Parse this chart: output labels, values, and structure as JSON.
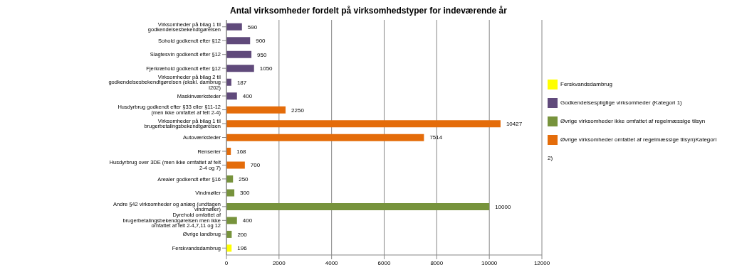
{
  "chart_data": {
    "type": "bar",
    "orientation": "horizontal",
    "stacked": true,
    "title": "Antal virksomheder fordelt på virksomhedstyper for indeværende  år",
    "categories": [
      "Virksomheder på bilag 1 til godkendelsesbekendtgørelsen",
      "Sohold godkendt efter §12",
      "Slagtesvin godkendt efter §12",
      "Fjerkræhold godkendt efter §12",
      "Virksomheder på bilag 2 til godkendelsesbekendtgørelsen (ekskl. dambrug I202)",
      "Maskinværksteder",
      "Husdyrbrug godkendt efter §33 eller §11-12 (men ikke omfattet af felt 2-4)",
      "Virksomheder på bilag 1 til brugerbetalingsbekendtgørelsen",
      "Autoværksteder",
      "Renserier",
      "Husdyrbrug over 3DE (men ikke omfattet af felt 2-4 og 7)",
      "Arealer godkendt efter §16",
      "Vindmøller",
      "Andre §42 virksomheder og anlæg (undtagen vindmøller)",
      "Dyrehold omfattet af brugerbetalingsbekendgørelsen men ikke omfattet af felt 2-4,7,11 og 12",
      "Øvrige landbrug",
      "Ferskvandsdambrug"
    ],
    "series": [
      {
        "name": "Godkendelsespligtige virksomheder (Kategori 1)",
        "color": "#604a7b",
        "values": [
          590,
          900,
          950,
          1050,
          187,
          400,
          null,
          null,
          null,
          null,
          null,
          null,
          null,
          null,
          null,
          null,
          null
        ]
      },
      {
        "name": "Øvrige virksomheder omfattet af regelmæssige tilsyn)Kategori 2)",
        "color": "#e46c0a",
        "values": [
          null,
          null,
          null,
          null,
          null,
          null,
          2250,
          10427,
          7514,
          168,
          700,
          null,
          null,
          null,
          null,
          null,
          null
        ]
      },
      {
        "name": "Øvrige virksomheder ikke omfattet af regelmæssige tilsyn",
        "color": "#77933c",
        "values": [
          null,
          null,
          null,
          null,
          null,
          null,
          null,
          null,
          null,
          null,
          null,
          250,
          300,
          10000,
          400,
          200,
          null
        ]
      },
      {
        "name": "Ferskvandsdambrug",
        "color": "#ffff00",
        "values": [
          null,
          null,
          null,
          null,
          null,
          null,
          null,
          null,
          null,
          null,
          null,
          null,
          null,
          null,
          null,
          null,
          196
        ]
      }
    ],
    "xlim": [
      0,
      12000
    ],
    "xticks": [
      0,
      2000,
      4000,
      6000,
      8000,
      10000,
      12000
    ],
    "grid": "x",
    "legend": "right",
    "data_labels": true
  }
}
